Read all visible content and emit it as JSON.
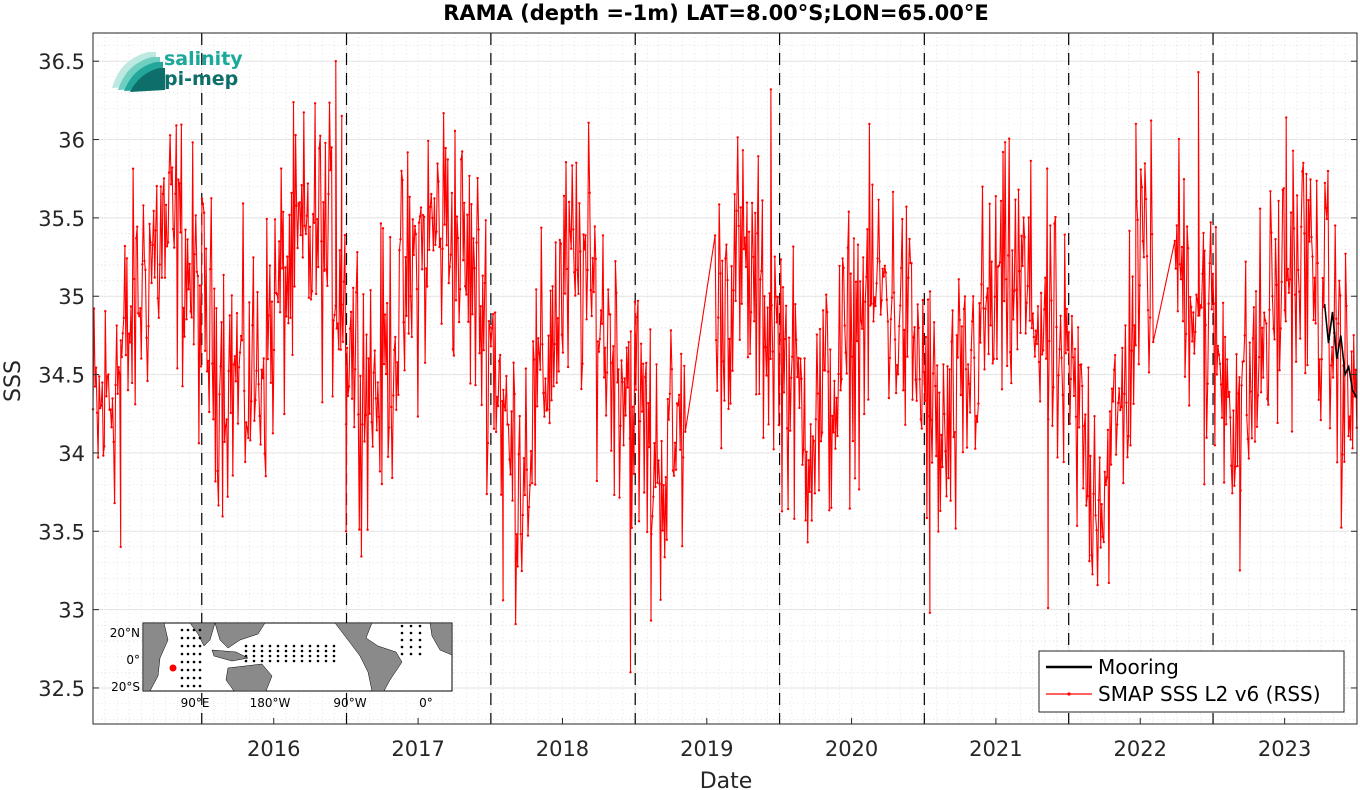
{
  "chart_data": {
    "type": "line",
    "title": "RAMA (depth =-1m) LAT=8.00°S;LON=65.00°E",
    "xlabel": "Date",
    "ylabel": "SSS",
    "xlim": [
      "2015-04-01",
      "2023-12-31"
    ],
    "ylim": [
      32.27,
      36.68
    ],
    "x_ticks": [
      "2016",
      "2017",
      "2018",
      "2019",
      "2020",
      "2021",
      "2022",
      "2023"
    ],
    "y_ticks": [
      "32.5",
      "33",
      "33.5",
      "34",
      "34.5",
      "35",
      "35.5",
      "36",
      "36.5"
    ],
    "grid": "on",
    "year_boundaries": [
      "2016-01-01",
      "2017-01-01",
      "2018-01-01",
      "2019-01-01",
      "2020-01-01",
      "2021-01-01",
      "2022-01-01",
      "2023-01-01"
    ],
    "legend_position": "bottom-right",
    "series": [
      {
        "name": "Mooring",
        "color": "#000000",
        "points": [
          [
            "2023-10-10",
            34.95
          ],
          [
            "2023-10-20",
            34.7
          ],
          [
            "2023-10-30",
            34.9
          ],
          [
            "2023-11-10",
            34.6
          ],
          [
            "2023-11-20",
            34.75
          ],
          [
            "2023-12-01",
            34.5
          ],
          [
            "2023-12-10",
            34.55
          ],
          [
            "2023-12-20",
            34.4
          ],
          [
            "2023-12-31",
            34.35
          ]
        ]
      },
      {
        "name": "SMAP SSS L2 v6 (RSS)",
        "color": "#ff0000",
        "gap": [
          "2019-05-10",
          "2019-07-20"
        ],
        "gap2": [
          "2022-08-05",
          "2022-09-25"
        ],
        "spikes": [
          [
            "2016-12-05",
            36.5
          ],
          [
            "2016-12-20",
            36.15
          ],
          [
            "2019-12-10",
            36.32
          ],
          [
            "2022-11-25",
            36.43
          ],
          [
            "2018-12-20",
            32.6
          ],
          [
            "2021-11-10",
            33.01
          ],
          [
            "2016-12-31",
            33.5
          ],
          [
            "2015-06-10",
            33.4
          ],
          [
            "2019-02-10",
            32.93
          ],
          [
            "2021-01-15",
            32.98
          ],
          [
            "2022-12-10",
            33.8
          ],
          [
            "2023-07-05",
            36.14
          ],
          [
            "2022-06-20",
            36.1
          ],
          [
            "2018-02-01",
            33.06
          ],
          [
            "2023-03-10",
            33.25
          ]
        ],
        "monthly_mean": [
          [
            "2015-04",
            34.2
          ],
          [
            "2015-05",
            34.4
          ],
          [
            "2015-06",
            34.6
          ],
          [
            "2015-07",
            34.9
          ],
          [
            "2015-08",
            35.2
          ],
          [
            "2015-09",
            35.35
          ],
          [
            "2015-10",
            35.4
          ],
          [
            "2015-11",
            35.3
          ],
          [
            "2015-12",
            35.0
          ],
          [
            "2016-01",
            34.8
          ],
          [
            "2016-02",
            34.6
          ],
          [
            "2016-03",
            34.5
          ],
          [
            "2016-04",
            34.45
          ],
          [
            "2016-05",
            34.5
          ],
          [
            "2016-06",
            34.7
          ],
          [
            "2016-07",
            35.0
          ],
          [
            "2016-08",
            35.2
          ],
          [
            "2016-09",
            35.3
          ],
          [
            "2016-10",
            35.4
          ],
          [
            "2016-11",
            35.3
          ],
          [
            "2016-12",
            35.1
          ],
          [
            "2017-01",
            34.7
          ],
          [
            "2017-02",
            34.5
          ],
          [
            "2017-03",
            34.4
          ],
          [
            "2017-04",
            34.6
          ],
          [
            "2017-05",
            34.9
          ],
          [
            "2017-06",
            35.1
          ],
          [
            "2017-07",
            35.3
          ],
          [
            "2017-08",
            35.45
          ],
          [
            "2017-09",
            35.5
          ],
          [
            "2017-10",
            35.3
          ],
          [
            "2017-11",
            35.1
          ],
          [
            "2017-12",
            34.9
          ],
          [
            "2018-01",
            34.6
          ],
          [
            "2018-02",
            34.0
          ],
          [
            "2018-03",
            33.9
          ],
          [
            "2018-04",
            34.2
          ],
          [
            "2018-05",
            34.5
          ],
          [
            "2018-06",
            34.9
          ],
          [
            "2018-07",
            35.1
          ],
          [
            "2018-08",
            35.2
          ],
          [
            "2018-09",
            35.0
          ],
          [
            "2018-10",
            34.8
          ],
          [
            "2018-11",
            34.6
          ],
          [
            "2018-12",
            34.5
          ],
          [
            "2019-01",
            34.2
          ],
          [
            "2019-02",
            34.0
          ],
          [
            "2019-03",
            33.9
          ],
          [
            "2019-04",
            34.1
          ],
          [
            "2019-05",
            34.3
          ],
          [
            "2019-08",
            35.0
          ],
          [
            "2019-09",
            35.2
          ],
          [
            "2019-10",
            35.1
          ],
          [
            "2019-11",
            34.9
          ],
          [
            "2019-12",
            34.8
          ],
          [
            "2020-01",
            34.6
          ],
          [
            "2020-02",
            34.3
          ],
          [
            "2020-03",
            34.2
          ],
          [
            "2020-04",
            34.25
          ],
          [
            "2020-05",
            34.4
          ],
          [
            "2020-06",
            34.6
          ],
          [
            "2020-07",
            34.8
          ],
          [
            "2020-08",
            35.0
          ],
          [
            "2020-09",
            35.05
          ],
          [
            "2020-10",
            34.95
          ],
          [
            "2020-11",
            34.8
          ],
          [
            "2020-12",
            34.6
          ],
          [
            "2021-01",
            34.3
          ],
          [
            "2021-02",
            34.0
          ],
          [
            "2021-03",
            34.1
          ],
          [
            "2021-04",
            34.4
          ],
          [
            "2021-05",
            34.7
          ],
          [
            "2021-06",
            34.9
          ],
          [
            "2021-07",
            35.0
          ],
          [
            "2021-08",
            35.1
          ],
          [
            "2021-09",
            35.0
          ],
          [
            "2021-10",
            34.9
          ],
          [
            "2021-11",
            34.7
          ],
          [
            "2021-12",
            34.5
          ],
          [
            "2022-01",
            34.3
          ],
          [
            "2022-02",
            34.0
          ],
          [
            "2022-03",
            33.8
          ],
          [
            "2022-04",
            33.9
          ],
          [
            "2022-05",
            34.3
          ],
          [
            "2022-06",
            34.9
          ],
          [
            "2022-07",
            35.3
          ],
          [
            "2022-08",
            35.2
          ],
          [
            "2022-10",
            35.2
          ],
          [
            "2022-11",
            35.1
          ],
          [
            "2022-12",
            34.9
          ],
          [
            "2023-01",
            34.6
          ],
          [
            "2023-02",
            34.4
          ],
          [
            "2023-03",
            34.3
          ],
          [
            "2023-04",
            34.5
          ],
          [
            "2023-05",
            34.8
          ],
          [
            "2023-06",
            35.0
          ],
          [
            "2023-07",
            35.2
          ],
          [
            "2023-08",
            35.25
          ],
          [
            "2023-09",
            35.1
          ],
          [
            "2023-10",
            34.9
          ],
          [
            "2023-11",
            34.6
          ],
          [
            "2023-12",
            34.3
          ]
        ]
      }
    ]
  },
  "logo": {
    "line1": "salinity",
    "line2": "pi-mep",
    "color1": "#1aa89a",
    "color2": "#0e6f6a"
  },
  "inset_map": {
    "lat_labels": [
      "20°N",
      "0°",
      "20°S"
    ],
    "lon_labels": [
      "90°E",
      "180°W",
      "90°W",
      "0°"
    ],
    "marker_color": "#ff0000"
  }
}
